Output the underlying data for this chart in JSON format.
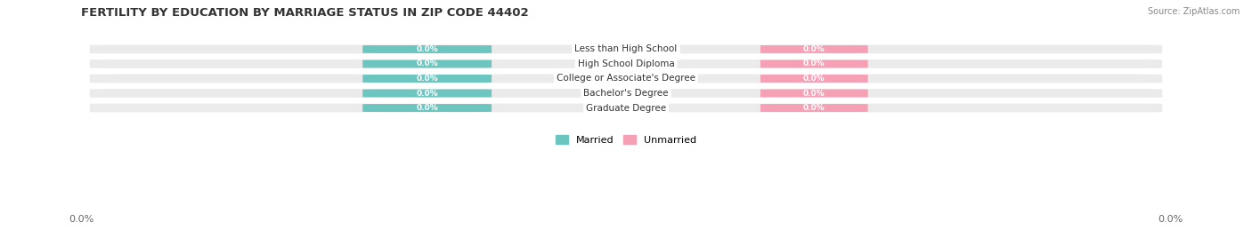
{
  "title": "FERTILITY BY EDUCATION BY MARRIAGE STATUS IN ZIP CODE 44402",
  "source_text": "Source: ZipAtlas.com",
  "categories": [
    "Less than High School",
    "High School Diploma",
    "College or Associate's Degree",
    "Bachelor's Degree",
    "Graduate Degree"
  ],
  "married_values": [
    0.0,
    0.0,
    0.0,
    0.0,
    0.0
  ],
  "unmarried_values": [
    0.0,
    0.0,
    0.0,
    0.0,
    0.0
  ],
  "married_color": "#6CC5BF",
  "unmarried_color": "#F5A0B5",
  "row_bg_color": "#EBEBEB",
  "label_color": "#333333",
  "value_label_color": "#FFFFFF",
  "title_fontsize": 9.5,
  "source_fontsize": 7,
  "legend_married": "Married",
  "legend_unmarried": "Unmarried",
  "figsize": [
    14.06,
    2.68
  ],
  "dpi": 100
}
